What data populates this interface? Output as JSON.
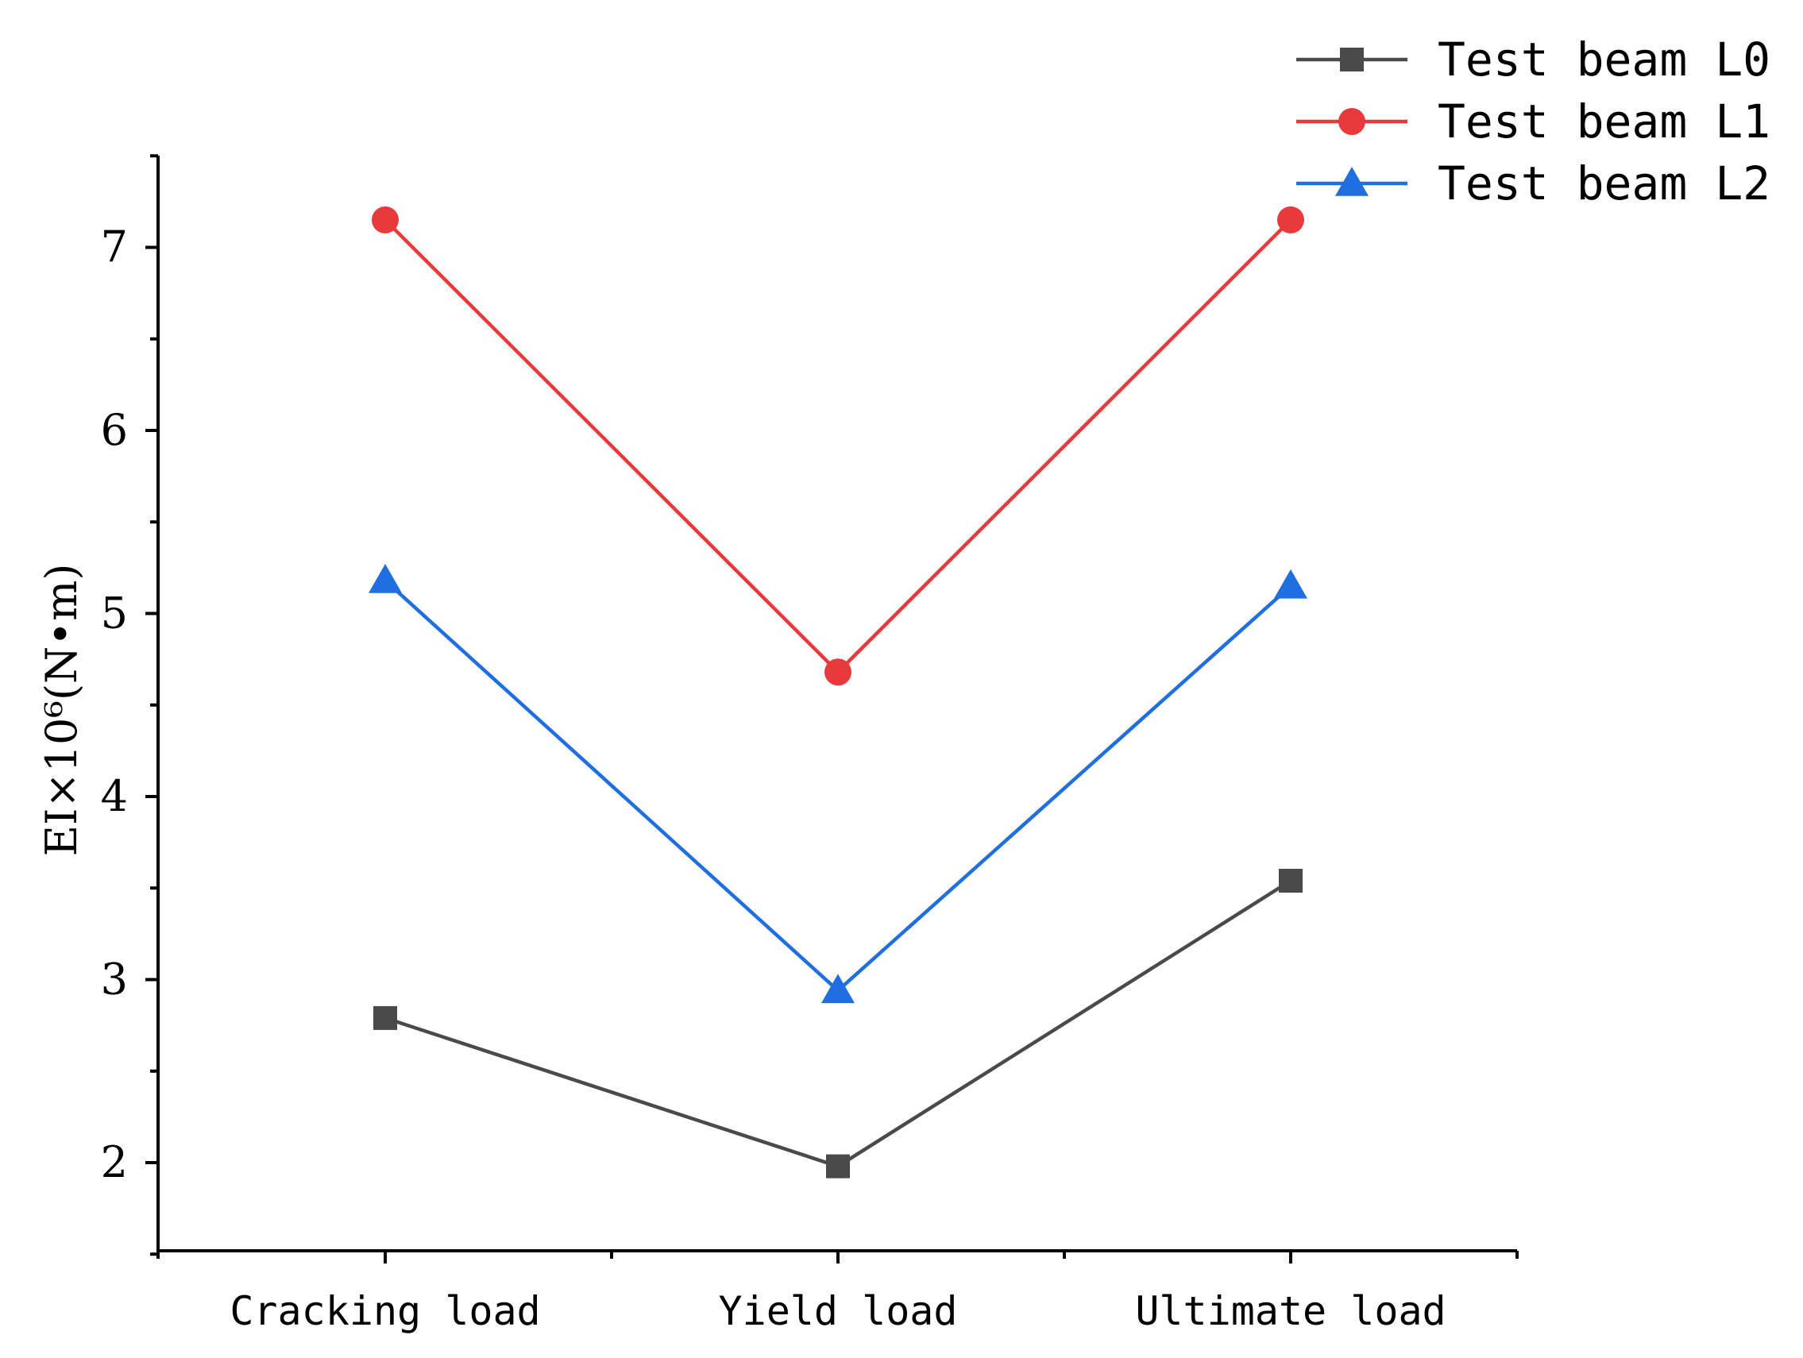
{
  "chart_data": {
    "type": "line",
    "categories": [
      "Cracking load",
      "Yield load",
      "Ultimate load"
    ],
    "ylabel": "EI×10⁶(N•m)",
    "ylim": [
      1.5,
      7.5
    ],
    "yticks": [
      2,
      3,
      4,
      5,
      6,
      7
    ],
    "grid": false,
    "legend_position": "top-right",
    "series": [
      {
        "name": "Test beam L0",
        "values": [
          2.79,
          1.98,
          3.54
        ],
        "color": "#4a4a4a",
        "marker": "square"
      },
      {
        "name": "Test beam L1",
        "values": [
          7.15,
          4.68,
          7.15
        ],
        "color": "#e8393d",
        "marker": "circle"
      },
      {
        "name": "Test beam L2",
        "values": [
          5.18,
          2.94,
          5.15
        ],
        "color": "#1f6fe0",
        "marker": "triangle"
      }
    ]
  }
}
